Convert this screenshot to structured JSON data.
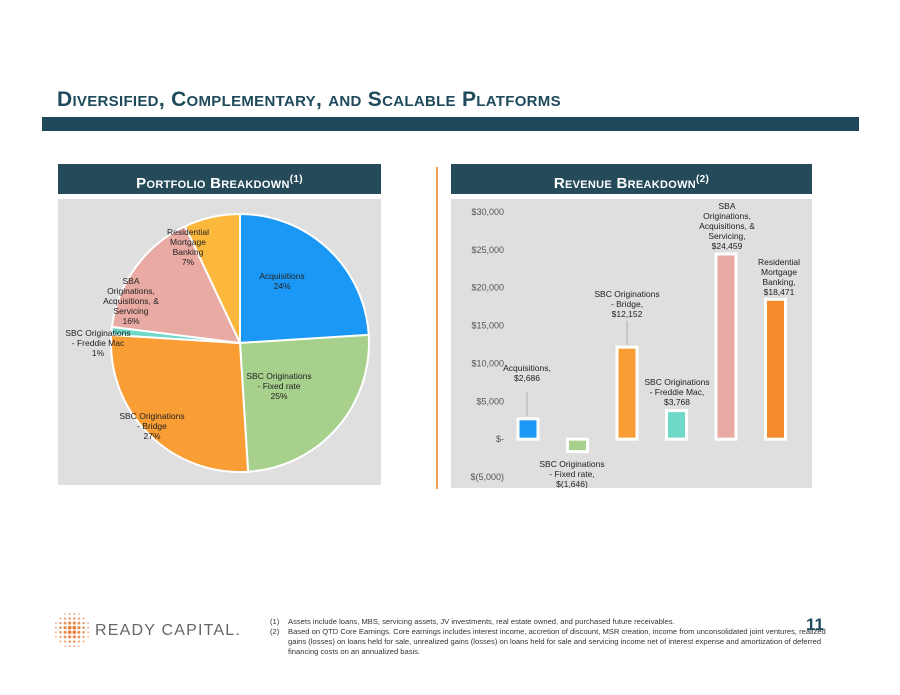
{
  "page": {
    "title": "Diversified, Complementary, and Scalable Platforms",
    "page_number": "11"
  },
  "portfolio": {
    "heading": "Portfolio Breakdown",
    "heading_sup": "(1)",
    "chart_data": {
      "type": "pie",
      "slices": [
        {
          "label": [
            "Acquisitions",
            "24%"
          ],
          "value": 24,
          "color": "#1b98f5"
        },
        {
          "label": [
            "SBC Originations",
            "- Fixed rate",
            "25%"
          ],
          "value": 25,
          "color": "#a7d08c"
        },
        {
          "label": [
            "SBC Originations",
            "- Bridge",
            "27%"
          ],
          "value": 27,
          "color": "#f99d35"
        },
        {
          "label": [
            "SBC Originations",
            "- Freddie Mac",
            "1%"
          ],
          "value": 1,
          "color": "#6fd9c8"
        },
        {
          "label": [
            "SBA",
            "Originations,",
            "Acquisitions, &",
            "Servicing",
            "16%"
          ],
          "value": 16,
          "color": "#e8aaa2"
        },
        {
          "label": [
            "Residential",
            "Mortgage",
            "Banking",
            "7%"
          ],
          "value": 7,
          "color": "#fbb83c"
        }
      ]
    }
  },
  "revenue": {
    "heading": "Revenue Breakdown",
    "heading_sup": "(2)",
    "chart_data": {
      "type": "bar",
      "categories": [
        "Acquisitions",
        "SBC Originations - Fixed rate",
        "SBC Originations - Bridge",
        "SBC Originations - Freddie Mac",
        "SBA Originations, Acquisitions, & Servicing",
        "Residential Mortgage Banking"
      ],
      "values": [
        2686,
        -1646,
        12152,
        3768,
        24459,
        18471
      ],
      "colors": [
        "#1b98f5",
        "#a7d08c",
        "#f99d35",
        "#6fd9c8",
        "#e8aaa2",
        "#f58a2c"
      ],
      "ylim": [
        -5000,
        30000
      ],
      "ticks": [
        30000,
        25000,
        20000,
        15000,
        10000,
        5000,
        0,
        -5000
      ],
      "tick_labels": [
        "$30,000",
        "$25,000",
        "$20,000",
        "$15,000",
        "$10,000",
        "$5,000",
        "$-",
        "$(5,000)"
      ],
      "data_labels": [
        [
          "Acquisitions,",
          "$2,686"
        ],
        [
          "SBC Originations",
          "- Fixed rate,",
          "$(1,646)"
        ],
        [
          "SBC Originations",
          "- Bridge,",
          "$12,152"
        ],
        [
          "SBC Originations",
          "- Freddie Mac,",
          "$3,768"
        ],
        [
          "SBA",
          "Originations,",
          "Acquisitions, &",
          "Servicing,",
          "$24,459"
        ],
        [
          "Residential",
          "Mortgage",
          "Banking,",
          "$18,471"
        ]
      ]
    }
  },
  "footnotes": [
    {
      "num": "(1)",
      "text": "Assets include loans, MBS, servicing assets, JV investments, real estate owned, and purchased future receivables."
    },
    {
      "num": "(2)",
      "text": "Based on QTD Core Earnings. Core earnings includes interest income, accretion of discount, MSR creation, income from unconsolidated joint ventures, realized gains (losses) on loans held for sale, unrealized gains (losses) on loans held for sale and servicing income net of interest expense and amortization of deferred financing costs on an annualized basis."
    }
  ],
  "logo": {
    "text": "READY CAPITAL.",
    "color": "#e8732a"
  }
}
